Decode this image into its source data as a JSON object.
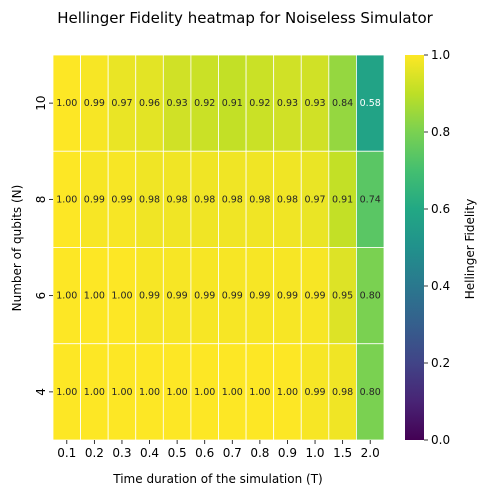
{
  "chart_data": {
    "type": "heatmap",
    "title": "Hellinger Fidelity heatmap for Noiseless Simulator",
    "xlabel": "Time duration of the simulation (T)",
    "ylabel": "Number of qubits (N)",
    "colorbar_label": "Hellinger Fidelity",
    "colormap": "viridis",
    "vmin": 0.0,
    "vmax": 1.0,
    "colorbar_ticks": [
      "0.0",
      "0.2",
      "0.4",
      "0.6",
      "0.8",
      "1.0"
    ],
    "x_categories": [
      "0.1",
      "0.2",
      "0.3",
      "0.4",
      "0.5",
      "0.6",
      "0.7",
      "0.8",
      "0.9",
      "1.0",
      "1.5",
      "2.0"
    ],
    "y_categories": [
      "10",
      "8",
      "6",
      "4"
    ],
    "values": [
      [
        1.0,
        0.99,
        0.97,
        0.96,
        0.93,
        0.92,
        0.91,
        0.92,
        0.93,
        0.93,
        0.84,
        0.58
      ],
      [
        1.0,
        0.99,
        0.99,
        0.98,
        0.98,
        0.98,
        0.98,
        0.98,
        0.98,
        0.97,
        0.91,
        0.74
      ],
      [
        1.0,
        1.0,
        1.0,
        0.99,
        0.99,
        0.99,
        0.99,
        0.99,
        0.99,
        0.99,
        0.95,
        0.8
      ],
      [
        1.0,
        1.0,
        1.0,
        1.0,
        1.0,
        1.0,
        1.0,
        1.0,
        1.0,
        0.99,
        0.98,
        0.8
      ]
    ],
    "annotation_format": "0.00",
    "grid": false,
    "colors": {
      "cell_border": "#ffffff",
      "annotation_on_light": "#262626",
      "annotation_on_dark": "#ffffff"
    }
  }
}
